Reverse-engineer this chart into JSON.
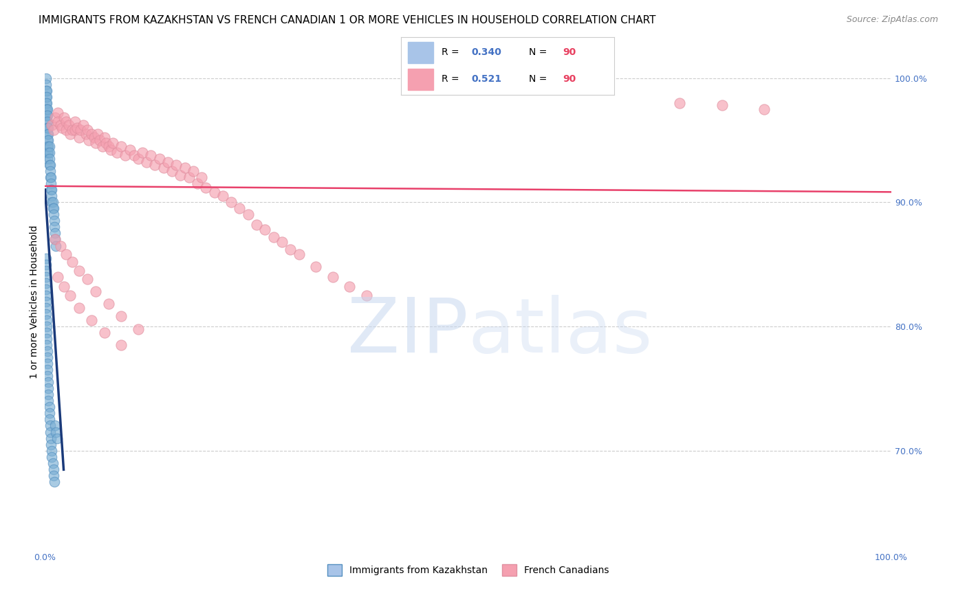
{
  "title": "IMMIGRANTS FROM KAZAKHSTAN VS FRENCH CANADIAN 1 OR MORE VEHICLES IN HOUSEHOLD CORRELATION CHART",
  "source": "Source: ZipAtlas.com",
  "ylabel": "1 or more Vehicles in Household",
  "xlim": [
    0.0,
    1.0
  ],
  "ylim": [
    0.62,
    1.02
  ],
  "ytick_positions": [
    0.7,
    0.8,
    0.9,
    1.0
  ],
  "blue_scatter_color": "#7bafd4",
  "pink_scatter_color": "#f5a0b0",
  "blue_line_color": "#1a3a7a",
  "pink_line_color": "#e8406a",
  "background_color": "#ffffff",
  "grid_color": "#cccccc",
  "title_fontsize": 11,
  "source_fontsize": 9,
  "axis_label_fontsize": 10,
  "tick_fontsize": 9,
  "R_blue": 0.34,
  "R_pink": 0.521,
  "N": 90,
  "blue_x": [
    0.001,
    0.001,
    0.001,
    0.001,
    0.001,
    0.001,
    0.001,
    0.002,
    0.002,
    0.002,
    0.002,
    0.002,
    0.002,
    0.002,
    0.003,
    0.003,
    0.003,
    0.003,
    0.003,
    0.003,
    0.003,
    0.003,
    0.003,
    0.004,
    0.004,
    0.004,
    0.004,
    0.004,
    0.005,
    0.005,
    0.005,
    0.005,
    0.006,
    0.006,
    0.006,
    0.007,
    0.007,
    0.007,
    0.008,
    0.008,
    0.008,
    0.009,
    0.009,
    0.01,
    0.01,
    0.011,
    0.011,
    0.012,
    0.012,
    0.013,
    0.001,
    0.001,
    0.001,
    0.001,
    0.001,
    0.001,
    0.001,
    0.001,
    0.001,
    0.001,
    0.002,
    0.002,
    0.002,
    0.002,
    0.002,
    0.003,
    0.003,
    0.003,
    0.003,
    0.003,
    0.004,
    0.004,
    0.004,
    0.004,
    0.005,
    0.005,
    0.005,
    0.006,
    0.006,
    0.007,
    0.007,
    0.008,
    0.008,
    0.009,
    0.01,
    0.01,
    0.011,
    0.012,
    0.013,
    0.014
  ],
  "blue_y": [
    1.0,
    0.995,
    0.99,
    0.985,
    0.98,
    0.975,
    0.97,
    0.99,
    0.985,
    0.98,
    0.975,
    0.97,
    0.965,
    0.96,
    0.975,
    0.97,
    0.965,
    0.96,
    0.955,
    0.95,
    0.945,
    0.94,
    0.935,
    0.96,
    0.955,
    0.95,
    0.945,
    0.94,
    0.945,
    0.94,
    0.935,
    0.93,
    0.93,
    0.925,
    0.92,
    0.92,
    0.915,
    0.91,
    0.91,
    0.905,
    0.9,
    0.9,
    0.895,
    0.895,
    0.89,
    0.885,
    0.88,
    0.875,
    0.87,
    0.865,
    0.855,
    0.85,
    0.845,
    0.84,
    0.835,
    0.83,
    0.825,
    0.82,
    0.815,
    0.81,
    0.805,
    0.8,
    0.795,
    0.79,
    0.785,
    0.78,
    0.775,
    0.77,
    0.765,
    0.76,
    0.755,
    0.75,
    0.745,
    0.74,
    0.735,
    0.73,
    0.725,
    0.72,
    0.715,
    0.71,
    0.705,
    0.7,
    0.695,
    0.69,
    0.685,
    0.68,
    0.675,
    0.72,
    0.715,
    0.71
  ],
  "pink_x": [
    0.008,
    0.01,
    0.012,
    0.015,
    0.015,
    0.018,
    0.02,
    0.022,
    0.025,
    0.025,
    0.028,
    0.03,
    0.032,
    0.035,
    0.035,
    0.038,
    0.04,
    0.042,
    0.045,
    0.048,
    0.05,
    0.052,
    0.055,
    0.058,
    0.06,
    0.062,
    0.065,
    0.068,
    0.07,
    0.072,
    0.075,
    0.078,
    0.08,
    0.085,
    0.09,
    0.095,
    0.1,
    0.105,
    0.11,
    0.115,
    0.12,
    0.125,
    0.13,
    0.135,
    0.14,
    0.145,
    0.15,
    0.155,
    0.16,
    0.165,
    0.17,
    0.175,
    0.18,
    0.185,
    0.19,
    0.2,
    0.21,
    0.22,
    0.23,
    0.24,
    0.25,
    0.26,
    0.27,
    0.28,
    0.29,
    0.3,
    0.32,
    0.34,
    0.36,
    0.38,
    0.012,
    0.018,
    0.025,
    0.032,
    0.04,
    0.05,
    0.06,
    0.075,
    0.09,
    0.11,
    0.015,
    0.022,
    0.03,
    0.04,
    0.055,
    0.07,
    0.09,
    0.75,
    0.8,
    0.85
  ],
  "pink_y": [
    0.962,
    0.958,
    0.968,
    0.972,
    0.965,
    0.962,
    0.96,
    0.968,
    0.965,
    0.958,
    0.962,
    0.955,
    0.958,
    0.965,
    0.958,
    0.96,
    0.952,
    0.958,
    0.962,
    0.955,
    0.958,
    0.95,
    0.955,
    0.952,
    0.948,
    0.955,
    0.95,
    0.945,
    0.952,
    0.948,
    0.945,
    0.942,
    0.948,
    0.94,
    0.945,
    0.938,
    0.942,
    0.938,
    0.935,
    0.94,
    0.932,
    0.938,
    0.93,
    0.935,
    0.928,
    0.932,
    0.925,
    0.93,
    0.922,
    0.928,
    0.92,
    0.925,
    0.915,
    0.92,
    0.912,
    0.908,
    0.905,
    0.9,
    0.895,
    0.89,
    0.882,
    0.878,
    0.872,
    0.868,
    0.862,
    0.858,
    0.848,
    0.84,
    0.832,
    0.825,
    0.87,
    0.865,
    0.858,
    0.852,
    0.845,
    0.838,
    0.828,
    0.818,
    0.808,
    0.798,
    0.84,
    0.832,
    0.825,
    0.815,
    0.805,
    0.795,
    0.785,
    0.98,
    0.978,
    0.975
  ]
}
